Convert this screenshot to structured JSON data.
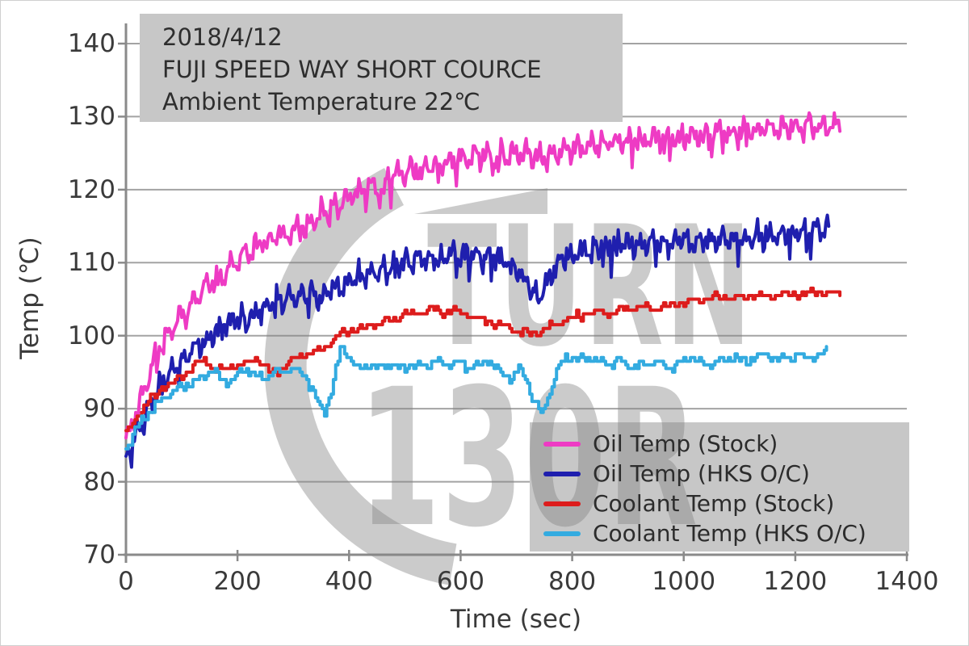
{
  "annotation": {
    "lines": [
      "2018/4/12",
      "FUJI SPEED WAY SHORT COURCE",
      "Ambient Temperature  22℃"
    ]
  },
  "chart_data": {
    "type": "line",
    "title": "",
    "xlabel": "Time (sec)",
    "ylabel": "Temp (℃)",
    "xlim": [
      0,
      1400
    ],
    "ylim": [
      70,
      140
    ],
    "xticks": [
      0,
      200,
      400,
      600,
      800,
      1000,
      1200,
      1400
    ],
    "yticks": [
      70,
      80,
      90,
      100,
      110,
      120,
      130,
      140
    ],
    "grid": "horizontal",
    "legend_position": "lower right",
    "background_boxes_color": "#c7c7c7",
    "grid_color": "#a3a3a3",
    "axis_color": "#8a8a8a",
    "watermark": {
      "line1": "TURN",
      "line2": "130R"
    },
    "series": [
      {
        "name": "Oil Temp (Stock)",
        "color": "#ee3bc4",
        "interp": "linear",
        "osc_amp": 1.7,
        "osc_period": 23,
        "phase": 0.3,
        "seed": 11,
        "dt": 2.5,
        "end_t": 1280,
        "quant": 0.5,
        "trend": [
          [
            0,
            85.5
          ],
          [
            30,
            92
          ],
          [
            60,
            98.5
          ],
          [
            90,
            102
          ],
          [
            120,
            104.5
          ],
          [
            150,
            107
          ],
          [
            180,
            109
          ],
          [
            210,
            111
          ],
          [
            240,
            112.5
          ],
          [
            270,
            113.5
          ],
          [
            300,
            114.5
          ],
          [
            330,
            115.5
          ],
          [
            360,
            117
          ],
          [
            390,
            118.5
          ],
          [
            420,
            120
          ],
          [
            450,
            121
          ],
          [
            480,
            122
          ],
          [
            510,
            122.8
          ],
          [
            540,
            123.4
          ],
          [
            570,
            123.8
          ],
          [
            600,
            124.2
          ],
          [
            640,
            124.6
          ],
          [
            680,
            124.9
          ],
          [
            720,
            125.1
          ],
          [
            745,
            124.2
          ],
          [
            780,
            125.6
          ],
          [
            840,
            126.1
          ],
          [
            900,
            126.6
          ],
          [
            960,
            127
          ],
          [
            1020,
            127.4
          ],
          [
            1080,
            127.9
          ],
          [
            1140,
            128.2
          ],
          [
            1200,
            128.5
          ],
          [
            1250,
            128.9
          ],
          [
            1280,
            129.3
          ]
        ]
      },
      {
        "name": "Oil Temp (HKS O/C)",
        "color": "#1f1fae",
        "interp": "linear",
        "osc_amp": 1.7,
        "osc_period": 21,
        "phase": 2.1,
        "seed": 23,
        "dt": 2.5,
        "end_t": 1262,
        "quant": 0.5,
        "trend": [
          [
            0,
            83.5
          ],
          [
            30,
            88
          ],
          [
            60,
            93
          ],
          [
            90,
            96
          ],
          [
            120,
            98
          ],
          [
            150,
            100
          ],
          [
            180,
            101.5
          ],
          [
            210,
            102.5
          ],
          [
            240,
            103.5
          ],
          [
            270,
            104.5
          ],
          [
            300,
            105.2
          ],
          [
            335,
            106
          ],
          [
            350,
            104.8
          ],
          [
            365,
            106.5
          ],
          [
            390,
            107.2
          ],
          [
            420,
            108
          ],
          [
            450,
            108.8
          ],
          [
            480,
            109.5
          ],
          [
            510,
            110
          ],
          [
            540,
            110.4
          ],
          [
            570,
            110.8
          ],
          [
            600,
            111
          ],
          [
            630,
            111.2
          ],
          [
            660,
            111
          ],
          [
            690,
            110
          ],
          [
            715,
            108
          ],
          [
            740,
            105.2
          ],
          [
            760,
            108
          ],
          [
            780,
            110.5
          ],
          [
            810,
            111.5
          ],
          [
            840,
            112
          ],
          [
            900,
            112.4
          ],
          [
            960,
            112.8
          ],
          [
            1020,
            112.9
          ],
          [
            1080,
            113.3
          ],
          [
            1140,
            113.6
          ],
          [
            1200,
            114
          ],
          [
            1262,
            114.5
          ]
        ]
      },
      {
        "name": "Coolant Temp (Stock)",
        "color": "#dd1c1c",
        "interp": "step",
        "osc_amp": 0.5,
        "osc_period": 42,
        "phase": 1.0,
        "seed": 5,
        "dt": 4,
        "end_t": 1283,
        "quant": 0.5,
        "trend": [
          [
            0,
            86.5
          ],
          [
            20,
            89
          ],
          [
            40,
            91
          ],
          [
            60,
            92.5
          ],
          [
            80,
            93.5
          ],
          [
            100,
            94.5
          ],
          [
            125,
            96.2
          ],
          [
            140,
            96.8
          ],
          [
            160,
            95.2
          ],
          [
            180,
            95.6
          ],
          [
            200,
            96
          ],
          [
            220,
            96.5
          ],
          [
            235,
            97
          ],
          [
            250,
            95.6
          ],
          [
            265,
            94.9
          ],
          [
            280,
            95.5
          ],
          [
            300,
            96.5
          ],
          [
            320,
            97.5
          ],
          [
            345,
            98
          ],
          [
            365,
            99
          ],
          [
            385,
            100.2
          ],
          [
            405,
            100.8
          ],
          [
            425,
            101.2
          ],
          [
            445,
            101.6
          ],
          [
            465,
            102
          ],
          [
            485,
            102.5
          ],
          [
            505,
            103
          ],
          [
            525,
            103.3
          ],
          [
            545,
            103.6
          ],
          [
            565,
            103.3
          ],
          [
            585,
            103.6
          ],
          [
            605,
            103.1
          ],
          [
            625,
            102.6
          ],
          [
            645,
            102.1
          ],
          [
            665,
            101.6
          ],
          [
            685,
            101
          ],
          [
            705,
            100.5
          ],
          [
            725,
            100.3
          ],
          [
            745,
            100.6
          ],
          [
            765,
            101.6
          ],
          [
            785,
            102.1
          ],
          [
            805,
            102.6
          ],
          [
            825,
            103
          ],
          [
            845,
            103.2
          ],
          [
            865,
            103
          ],
          [
            885,
            103.5
          ],
          [
            905,
            103.8
          ],
          [
            925,
            104
          ],
          [
            945,
            103.6
          ],
          [
            965,
            104
          ],
          [
            985,
            104.3
          ],
          [
            1005,
            104.6
          ],
          [
            1025,
            104.8
          ],
          [
            1045,
            105
          ],
          [
            1065,
            105.3
          ],
          [
            1085,
            105
          ],
          [
            1105,
            105.3
          ],
          [
            1125,
            105.5
          ],
          [
            1145,
            105.3
          ],
          [
            1165,
            105.6
          ],
          [
            1185,
            105.8
          ],
          [
            1205,
            105.5
          ],
          [
            1225,
            105.8
          ],
          [
            1245,
            106
          ],
          [
            1265,
            105.8
          ],
          [
            1283,
            106
          ]
        ]
      },
      {
        "name": "Coolant Temp (HKS O/C)",
        "color": "#33abe0",
        "interp": "step",
        "osc_amp": 0.55,
        "osc_period": 36,
        "phase": 4.2,
        "seed": 9,
        "dt": 4,
        "end_t": 1258,
        "quant": 0.5,
        "trend": [
          [
            0,
            84.5
          ],
          [
            20,
            87.5
          ],
          [
            40,
            89.5
          ],
          [
            60,
            91
          ],
          [
            80,
            92
          ],
          [
            100,
            93
          ],
          [
            120,
            93.6
          ],
          [
            140,
            94.5
          ],
          [
            155,
            95.5
          ],
          [
            170,
            94
          ],
          [
            185,
            93.6
          ],
          [
            200,
            94.6
          ],
          [
            215,
            95.5
          ],
          [
            230,
            94.6
          ],
          [
            245,
            94
          ],
          [
            260,
            94.6
          ],
          [
            280,
            95
          ],
          [
            300,
            95.5
          ],
          [
            318,
            94.5
          ],
          [
            332,
            93
          ],
          [
            346,
            90.5
          ],
          [
            356,
            89.5
          ],
          [
            370,
            93
          ],
          [
            384,
            98.4
          ],
          [
            400,
            97
          ],
          [
            415,
            95.6
          ],
          [
            432,
            96
          ],
          [
            452,
            95.6
          ],
          [
            472,
            96
          ],
          [
            492,
            95.6
          ],
          [
            512,
            96
          ],
          [
            532,
            95.6
          ],
          [
            552,
            96.5
          ],
          [
            572,
            96
          ],
          [
            592,
            96.5
          ],
          [
            612,
            95.6
          ],
          [
            632,
            96
          ],
          [
            652,
            96.5
          ],
          [
            672,
            95
          ],
          [
            690,
            94
          ],
          [
            704,
            95.5
          ],
          [
            716,
            94
          ],
          [
            730,
            91.5
          ],
          [
            744,
            89
          ],
          [
            758,
            92
          ],
          [
            772,
            95
          ],
          [
            788,
            97.4
          ],
          [
            808,
            96.5
          ],
          [
            828,
            97
          ],
          [
            848,
            96.5
          ],
          [
            868,
            96
          ],
          [
            888,
            96.5
          ],
          [
            908,
            95.6
          ],
          [
            928,
            96
          ],
          [
            948,
            96.5
          ],
          [
            968,
            95.6
          ],
          [
            988,
            96
          ],
          [
            1008,
            97
          ],
          [
            1028,
            96.5
          ],
          [
            1048,
            96
          ],
          [
            1068,
            96.6
          ],
          [
            1088,
            97
          ],
          [
            1108,
            96.6
          ],
          [
            1128,
            97
          ],
          [
            1148,
            97.4
          ],
          [
            1168,
            96.6
          ],
          [
            1188,
            97
          ],
          [
            1208,
            97.4
          ],
          [
            1228,
            97
          ],
          [
            1244,
            97.3
          ],
          [
            1256,
            98.2
          ]
        ]
      }
    ]
  }
}
